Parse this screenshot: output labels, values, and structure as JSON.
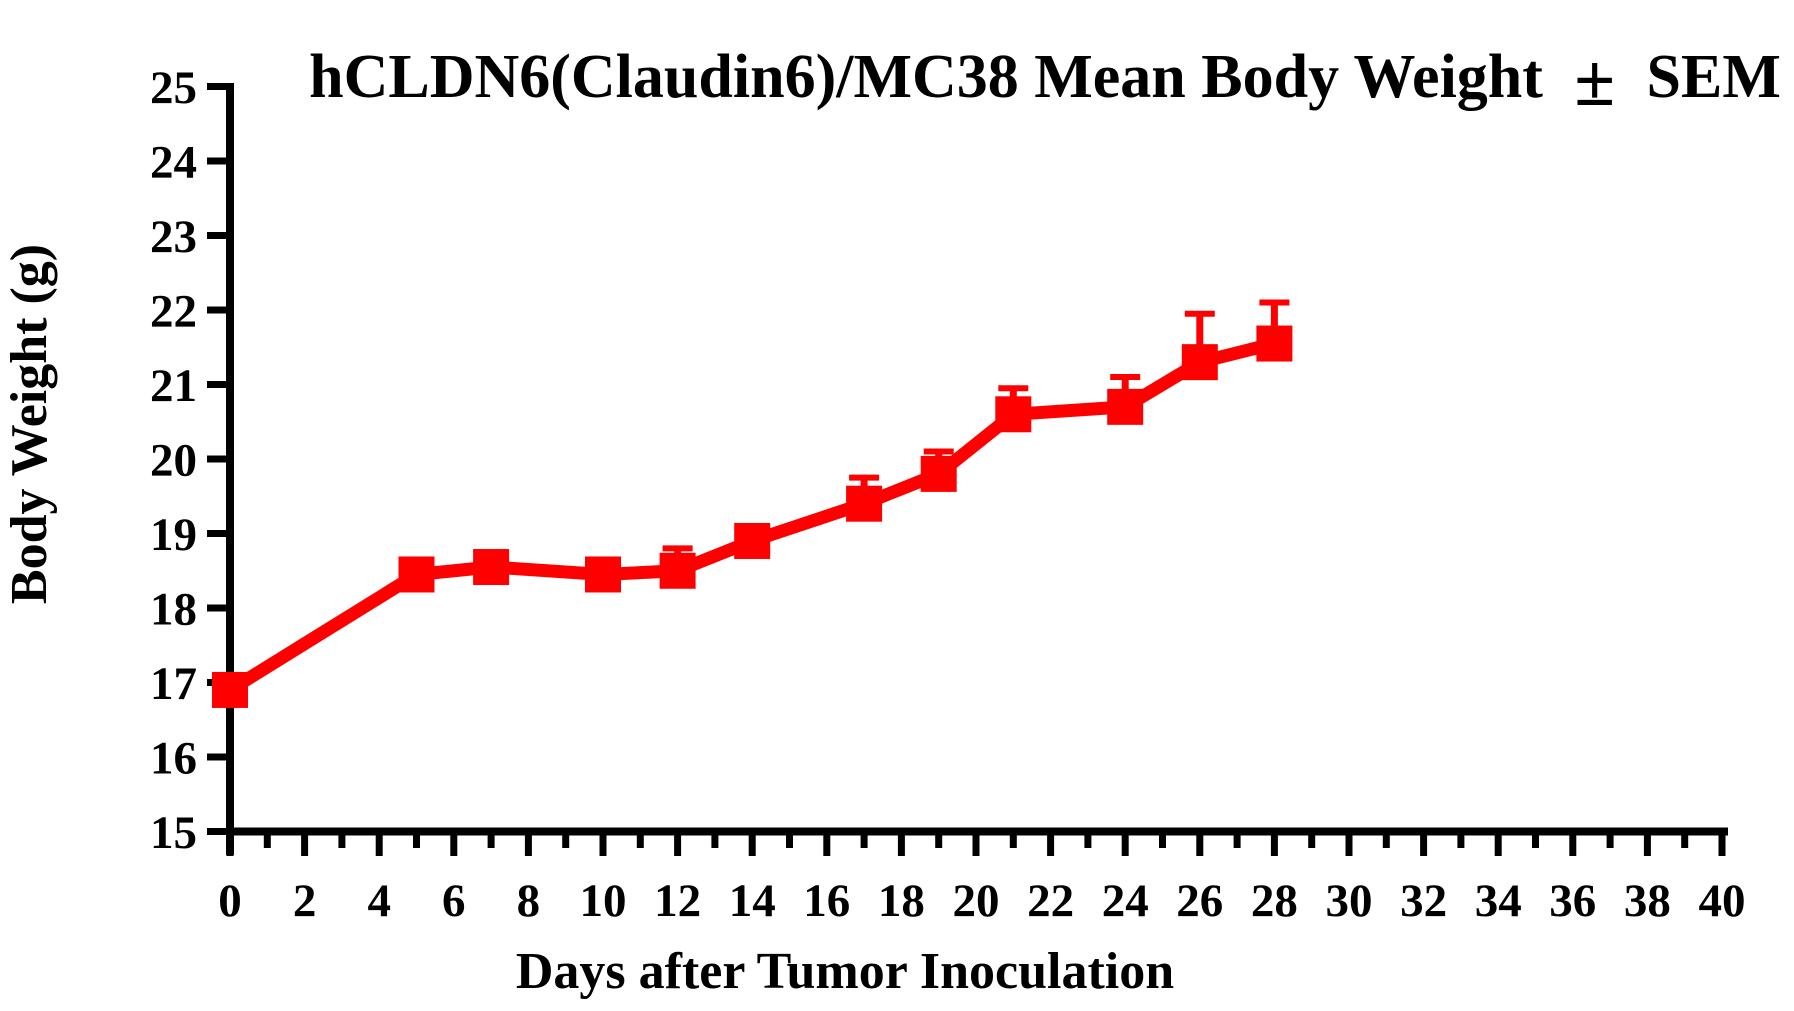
{
  "title_parts": {
    "main": "hCLDN6(Claudin6)/MC38 Mean Body Weight",
    "pm": "±",
    "suffix": "SEM"
  },
  "chart_data": {
    "type": "line",
    "title": "hCLDN6(Claudin6)/MC38 Mean Body Weight ± SEM",
    "xlabel": "Days after Tumor Inoculation",
    "ylabel": "Body Weight (g)",
    "x": [
      0,
      5,
      7,
      10,
      12,
      14,
      17,
      19,
      21,
      24,
      26,
      28
    ],
    "series": [
      {
        "name": "hCLDN6(Claudin6)/MC38",
        "values": [
          16.9,
          18.45,
          18.55,
          18.45,
          18.5,
          18.9,
          19.4,
          19.8,
          20.6,
          20.7,
          21.3,
          21.55
        ],
        "sem_upper": [
          0,
          0,
          0,
          0,
          0.3,
          0,
          0.35,
          0.3,
          0.35,
          0.4,
          0.65,
          0.55
        ],
        "color": "#FF0000",
        "marker": "square"
      }
    ],
    "xlim": [
      0,
      40
    ],
    "ylim": [
      15,
      25
    ],
    "x_major_tick_step": 2,
    "x_minor_tick_step": 1,
    "y_tick_step": 1,
    "grid": false,
    "legend": false,
    "error_bars": "SEM, upper caps only",
    "axis_color": "#000000",
    "background_color": "#FFFFFF"
  }
}
